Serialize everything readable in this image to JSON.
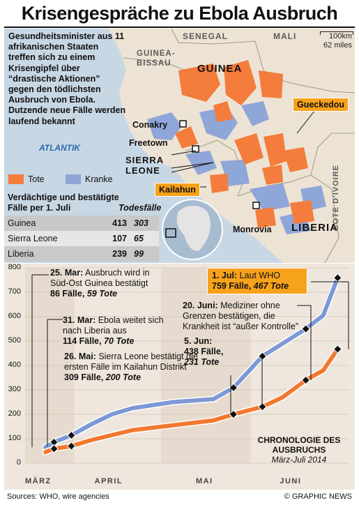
{
  "title": "Krisengespräche zu Ebola Ausbruch",
  "intro_text": "Gesundheitsminister aus 11 afrikanischen Staaten treffen sich zu einem Krisengipfel über “drastische Aktionen” gegen den tödlichsten Ausbruch von Ebola. Dutzende neue Fälle werden laufend bekannt",
  "map": {
    "ocean_label": "ATLANTIK",
    "scale": {
      "km": "100km",
      "miles": "62 miles"
    },
    "countries": [
      {
        "name": "SENEGAL"
      },
      {
        "name": "MALI"
      },
      {
        "name": "GUINEA-BISSAU"
      },
      {
        "name": "GUINEA"
      },
      {
        "name": "SIERRA LEONE"
      },
      {
        "name": "LIBERIA"
      },
      {
        "name": "COTE D'IVOIRE"
      }
    ],
    "cities": [
      "Conakry",
      "Freetown",
      "Monrovia"
    ],
    "callouts": [
      "Gueckedou",
      "Kailahun"
    ],
    "colors": {
      "land": "#ede3d4",
      "ocean": "#c8d7e4",
      "deaths": "#f47c3c",
      "sick": "#8fa6d8"
    }
  },
  "legend": {
    "deaths_label": "Tote",
    "sick_label": "Kranke",
    "deaths_color": "#f47c3c",
    "sick_color": "#8fa6d8"
  },
  "table": {
    "heading": "Verdächtige und bestätigte Fälle per 1. Juli",
    "deaths_heading": "Todesfälle",
    "rows": [
      {
        "country": "Guinea",
        "cases": "413",
        "deaths": "303"
      },
      {
        "country": "Sierra Leone",
        "cases": "107",
        "deaths": "65"
      },
      {
        "country": "Liberia",
        "cases": "239",
        "deaths": "99"
      }
    ]
  },
  "chart_data": {
    "type": "line",
    "ylim": [
      0,
      800
    ],
    "yticks": [
      "800",
      "700",
      "600",
      "500",
      "400",
      "300",
      "200",
      "100",
      "0"
    ],
    "x_month_labels": [
      "MÄRZ",
      "APRIL",
      "MAI",
      "JUNI"
    ],
    "series": [
      {
        "name": "Kranke",
        "color": "#7d98d4",
        "x": [
          "2014-03-22",
          "2014-03-25",
          "2014-03-31",
          "2014-04-07",
          "2014-04-14",
          "2014-04-21",
          "2014-05-05",
          "2014-05-19",
          "2014-05-26",
          "2014-06-05",
          "2014-06-12",
          "2014-06-20",
          "2014-06-26",
          "2014-07-01"
        ],
        "values": [
          65,
          86,
          114,
          160,
          200,
          225,
          250,
          262,
          309,
          438,
          490,
          550,
          605,
          759
        ]
      },
      {
        "name": "Tote",
        "color": "#f2782f",
        "x": [
          "2014-03-22",
          "2014-03-25",
          "2014-03-31",
          "2014-04-07",
          "2014-04-14",
          "2014-04-21",
          "2014-05-05",
          "2014-05-19",
          "2014-05-26",
          "2014-06-05",
          "2014-06-12",
          "2014-06-20",
          "2014-06-26",
          "2014-07-01"
        ],
        "values": [
          45,
          59,
          70,
          95,
          115,
          135,
          155,
          175,
          200,
          231,
          270,
          340,
          380,
          467
        ]
      }
    ]
  },
  "annotations": [
    {
      "date": "25. Mar:",
      "text": "Ausbruch wird in Süd-Ost Guinea bestätigt",
      "count": "86 Fälle,",
      "deaths": "59 Tote"
    },
    {
      "date": "31. Mar:",
      "text": "Ebola weitet sich nach Liberia aus",
      "count": "114 Fälle,",
      "deaths": "70 Tote"
    },
    {
      "date": "26. Mai:",
      "text": "Sierra Leone bestätigt die ersten Fälle im Kailahun Distrikt",
      "count": "309 Fälle,",
      "deaths": "200 Tote"
    },
    {
      "date": "5. Jun:",
      "text": "",
      "count": "438 Fälle,",
      "deaths": "231 Tote"
    },
    {
      "date": "20. Juni:",
      "text": "Mediziner ohne Grenzen bestätigen, die Krankheit ist “außer Kontrolle”",
      "count": "",
      "deaths": ""
    },
    {
      "date": "1. Jul:",
      "text": "Laut WHO",
      "count": "759 Fälle,",
      "deaths": "467 Tote"
    }
  ],
  "chronology": {
    "title": "CHRONOLOGIE DES AUSBRUCHS",
    "subtitle": "März-Juli 2014"
  },
  "footer": {
    "sources": "Sources: WHO, wire agencies",
    "credit": "© GRAPHIC NEWS"
  }
}
